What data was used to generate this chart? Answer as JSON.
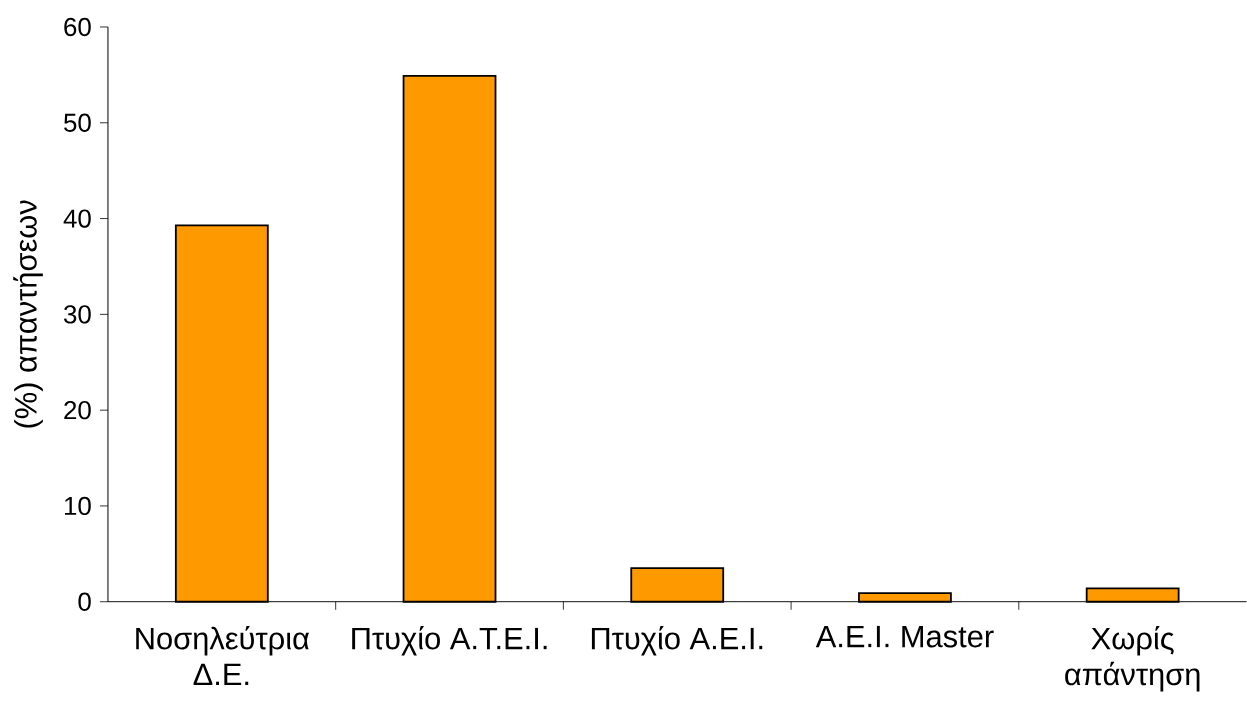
{
  "chart_data": {
    "type": "bar",
    "ylabel": "(%) απαντήσεων",
    "categories": [
      "Νοσηλεύτρια Δ.Ε.",
      "Πτυχίο Α.Τ.Ε.Ι.",
      "Πτυχίο Α.Ε.Ι.",
      "Α.Ε.Ι. Master",
      "Χωρίς απάντηση"
    ],
    "values": [
      39.3,
      54.9,
      3.5,
      0.9,
      1.4
    ],
    "color": "#ff9900",
    "ylim": [
      0,
      60
    ],
    "yticks": [
      0,
      10,
      20,
      30,
      40,
      50,
      60
    ]
  }
}
